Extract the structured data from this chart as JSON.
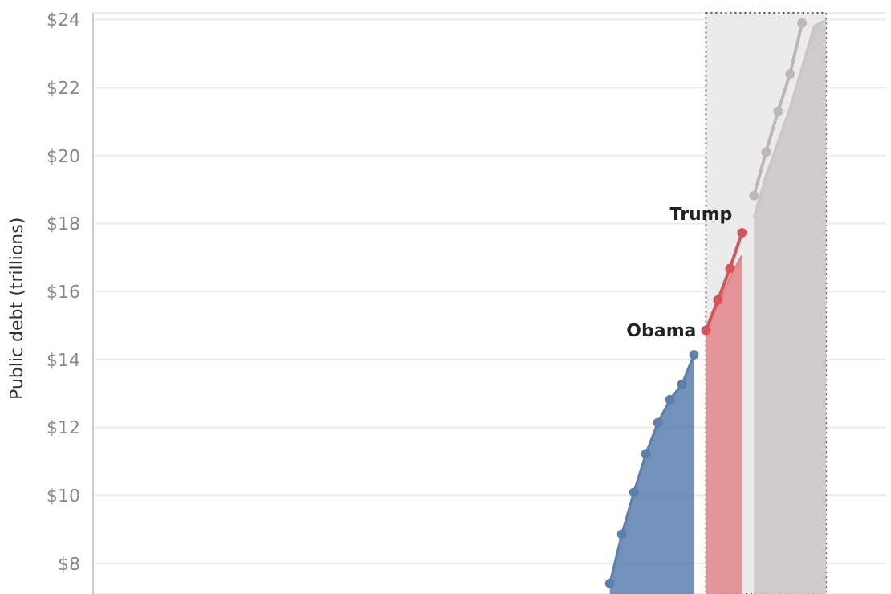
{
  "chart_data": {
    "type": "area",
    "ylabel": "Public debt (trillions)",
    "categories": [
      null,
      null,
      null,
      null,
      null,
      null,
      null,
      null,
      null,
      null,
      null,
      null,
      null,
      null,
      null,
      null,
      null,
      null,
      null,
      null,
      null,
      null,
      null,
      null,
      null,
      null,
      null,
      null,
      null,
      null,
      null,
      null,
      null,
      null,
      null,
      null,
      null,
      null,
      null,
      null,
      null,
      null,
      null,
      null,
      null,
      null,
      null,
      null,
      null,
      null,
      null,
      null,
      null,
      null,
      null,
      null,
      null,
      null,
      null,
      null,
      null,
      null,
      null,
      null,
      null,
      null,
      null
    ],
    "tick_labels": "y",
    "ylim": [
      7.1,
      24.2
    ],
    "yticks": [
      {
        "value": 8,
        "label": "$8"
      },
      {
        "value": 10,
        "label": "$10"
      },
      {
        "value": 12,
        "label": "$12"
      },
      {
        "value": 14,
        "label": "$14"
      },
      {
        "value": 16,
        "label": "$16"
      },
      {
        "value": 18,
        "label": "$18"
      },
      {
        "value": 20,
        "label": "$20"
      },
      {
        "value": 22,
        "label": "$22"
      },
      {
        "value": 24,
        "label": "$24"
      }
    ],
    "grid": "y",
    "legend": false,
    "annotations": [
      "Obama",
      "Trump"
    ],
    "series": [
      {
        "color": "#5b7fae",
        "marker": "circle",
        "values": [
          null,
          null,
          null,
          null,
          null,
          null,
          null,
          null,
          null,
          null,
          null,
          null,
          null,
          null,
          null,
          null,
          null,
          null,
          null,
          null,
          null,
          null,
          null,
          null,
          null,
          null,
          null,
          null,
          null,
          null,
          null,
          null,
          null,
          null,
          null,
          null,
          null,
          null,
          null,
          null,
          null,
          null,
          null,
          7.41,
          8.86,
          10.09,
          11.23,
          12.14,
          12.82,
          13.27,
          14.14,
          null,
          null,
          null,
          null,
          null,
          null,
          null,
          null,
          null,
          null,
          null,
          null,
          null,
          null,
          null,
          null
        ]
      },
      {
        "color": "#e2868b",
        "marker": "none",
        "values": [
          null,
          null,
          null,
          null,
          null,
          null,
          null,
          null,
          null,
          null,
          null,
          null,
          null,
          null,
          null,
          null,
          null,
          null,
          null,
          null,
          null,
          null,
          null,
          null,
          null,
          null,
          null,
          null,
          null,
          null,
          null,
          null,
          null,
          null,
          null,
          null,
          null,
          null,
          null,
          null,
          null,
          null,
          null,
          null,
          null,
          null,
          null,
          null,
          null,
          null,
          null,
          14.86,
          15.6,
          16.4,
          17.05,
          null,
          null,
          null,
          null,
          null,
          null,
          null,
          null,
          null,
          null,
          null,
          null
        ]
      },
      {
        "type": "line",
        "color": "#d6545a",
        "marker": "circle",
        "values": [
          null,
          null,
          null,
          null,
          null,
          null,
          null,
          null,
          null,
          null,
          null,
          null,
          null,
          null,
          null,
          null,
          null,
          null,
          null,
          null,
          null,
          null,
          null,
          null,
          null,
          null,
          null,
          null,
          null,
          null,
          null,
          null,
          null,
          null,
          null,
          null,
          null,
          null,
          null,
          null,
          null,
          null,
          null,
          null,
          null,
          null,
          null,
          null,
          null,
          null,
          null,
          14.86,
          15.75,
          16.68,
          17.73,
          null,
          null,
          null,
          null,
          null,
          null,
          null,
          null,
          null,
          null,
          null,
          null
        ]
      },
      {
        "color": "#cbc4c4",
        "marker": "none",
        "values": [
          null,
          null,
          null,
          null,
          null,
          null,
          null,
          null,
          null,
          null,
          null,
          null,
          null,
          null,
          null,
          null,
          null,
          null,
          null,
          null,
          null,
          null,
          null,
          null,
          null,
          null,
          null,
          null,
          null,
          null,
          null,
          null,
          null,
          null,
          null,
          null,
          null,
          null,
          null,
          null,
          null,
          null,
          null,
          null,
          null,
          null,
          null,
          null,
          null,
          null,
          null,
          null,
          null,
          null,
          null,
          18.18,
          19.4,
          20.4,
          21.4,
          22.6,
          23.8,
          24,
          null,
          null,
          null,
          null,
          null
        ]
      },
      {
        "type": "line",
        "color": "#bdb8b8",
        "marker": "circle",
        "values": [
          null,
          null,
          null,
          null,
          null,
          null,
          null,
          null,
          null,
          null,
          null,
          null,
          null,
          null,
          null,
          null,
          null,
          null,
          null,
          null,
          null,
          null,
          null,
          null,
          null,
          null,
          null,
          null,
          null,
          null,
          null,
          null,
          null,
          null,
          null,
          null,
          null,
          null,
          null,
          null,
          null,
          null,
          null,
          null,
          null,
          null,
          null,
          null,
          null,
          null,
          null,
          null,
          null,
          null,
          null,
          18.82,
          20.1,
          21.3,
          22.4,
          23.9,
          null,
          null,
          null,
          null,
          null,
          null,
          null
        ]
      }
    ]
  }
}
